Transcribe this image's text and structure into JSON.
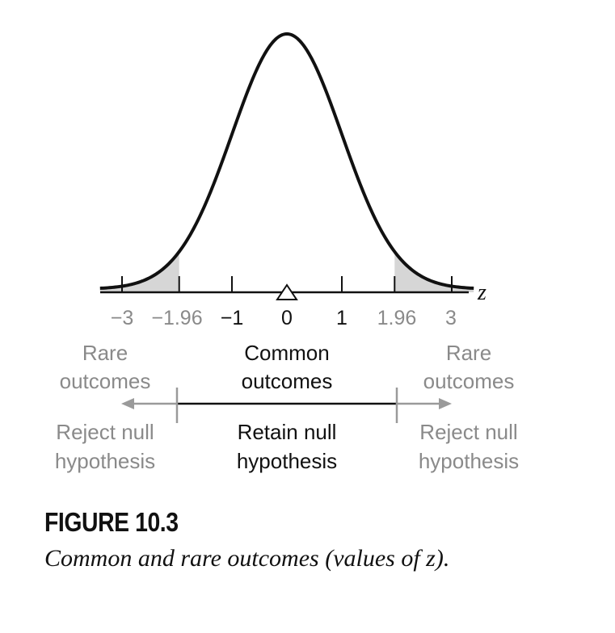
{
  "figure": {
    "label": "FIGURE 10.3",
    "caption": "Common and rare outcomes (values of z)."
  },
  "axis": {
    "variable": "z",
    "tick_labels": [
      "−3",
      "−1.96",
      "−1",
      "0",
      "1",
      "1.96",
      "3"
    ]
  },
  "regions": {
    "left_outcome": [
      "Rare",
      "outcomes"
    ],
    "center_outcome": [
      "Common",
      "outcomes"
    ],
    "right_outcome": [
      "Rare",
      "outcomes"
    ],
    "left_decision": [
      "Reject null",
      "hypothesis"
    ],
    "center_decision": [
      "Retain null",
      "hypothesis"
    ],
    "right_decision": [
      "Reject null",
      "hypothesis"
    ]
  },
  "chart_data": {
    "type": "area",
    "distribution": "standard normal",
    "xlim": [
      -3.4,
      3.4
    ],
    "mean": 0,
    "critical_values": [
      -1.96,
      1.96
    ],
    "shaded_tails": [
      "z < -1.96",
      "z > 1.96"
    ],
    "ticks": [
      -3,
      -1.96,
      -1,
      0,
      1,
      1.96,
      3
    ]
  },
  "colors": {
    "curve": "#111111",
    "tail_fill": "#d6d6d6",
    "dark_text": "#111111",
    "gray_text": "#8a8a8a",
    "gray_arrow": "#9a9a9a"
  }
}
